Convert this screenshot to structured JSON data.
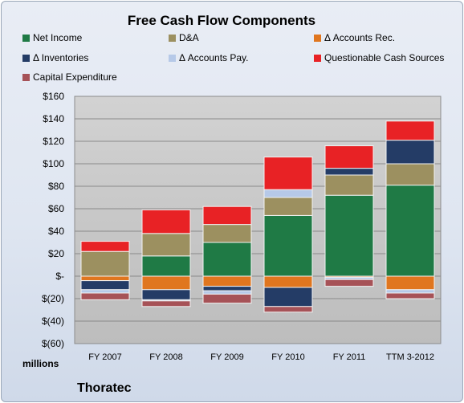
{
  "chart_data": {
    "type": "bar",
    "stacked": true,
    "title": "Free Cash Flow Components",
    "units_label": "millions",
    "company": "Thoratec",
    "categories": [
      "FY 2007",
      "FY 2008",
      "FY 2009",
      "FY 2010",
      "FY 2011",
      "TTM 3-2012"
    ],
    "ylim": [
      -60,
      160
    ],
    "y_ticks": [
      {
        "value": 160,
        "label": "$160"
      },
      {
        "value": 140,
        "label": "$140"
      },
      {
        "value": 120,
        "label": "$120"
      },
      {
        "value": 100,
        "label": "$100"
      },
      {
        "value": 80,
        "label": "$80"
      },
      {
        "value": 60,
        "label": "$60"
      },
      {
        "value": 40,
        "label": "$40"
      },
      {
        "value": 20,
        "label": "$20"
      },
      {
        "value": 0,
        "label": "$-"
      },
      {
        "value": -20,
        "label": "$(20)"
      },
      {
        "value": -40,
        "label": "$(40)"
      },
      {
        "value": -60,
        "label": "$(60)"
      }
    ],
    "grid": true,
    "legend_position": "top",
    "series": [
      {
        "name": "Net Income",
        "color": "#1f7a45",
        "values": [
          0,
          18,
          30,
          54,
          72,
          81
        ]
      },
      {
        "name": "D&A",
        "color": "#9c9060",
        "values": [
          22,
          20,
          16,
          16,
          18,
          19
        ]
      },
      {
        "name": "Δ Accounts Rec.",
        "color": "#e0761f",
        "values": [
          -4,
          -12,
          -9,
          -10,
          -1,
          -12
        ]
      },
      {
        "name": "Δ Inventories",
        "color": "#243c66",
        "values": [
          -8,
          -9,
          -4,
          -17,
          6,
          21
        ]
      },
      {
        "name": "Δ Accounts Pay.",
        "color": "#b6c9e8",
        "values": [
          -3,
          -1,
          -3,
          7,
          -2,
          -3
        ]
      },
      {
        "name": "Questionable Cash Sources",
        "color": "#e82225",
        "values": [
          9,
          21,
          16,
          29,
          20,
          17
        ]
      },
      {
        "name": "Capital Expenditure",
        "color": "#a65257",
        "values": [
          -6,
          -5,
          -8,
          -5,
          -6,
          -5
        ]
      }
    ]
  }
}
